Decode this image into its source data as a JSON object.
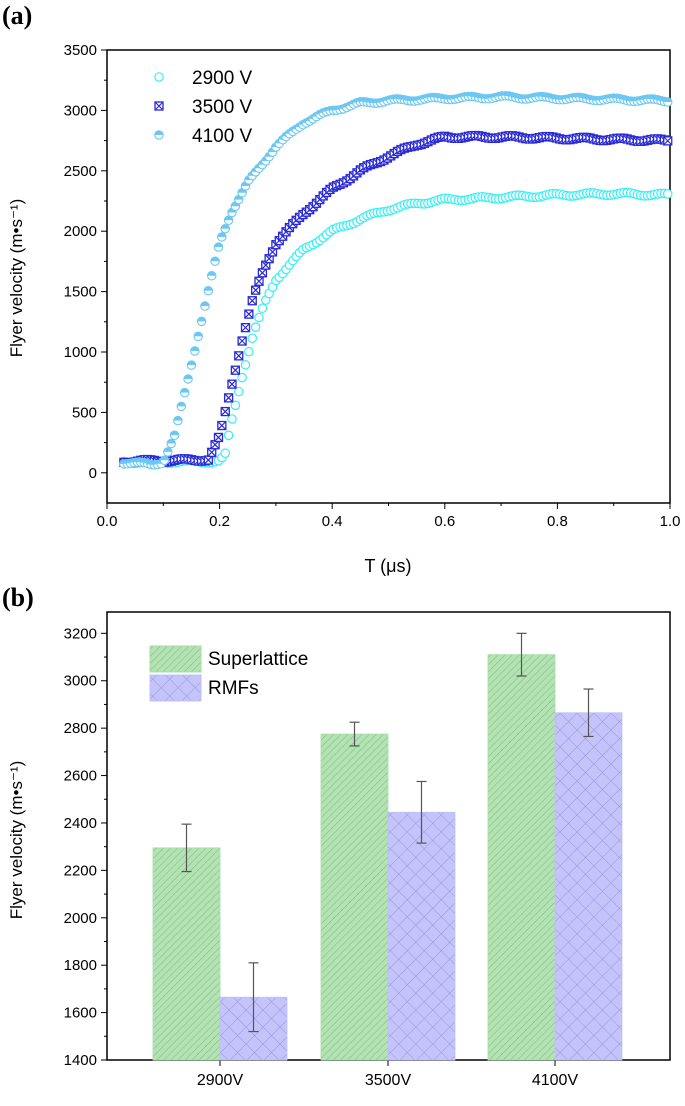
{
  "chart_data": [
    {
      "panel_label": "(a)",
      "type": "scatter",
      "xlabel": "T (μs)",
      "ylabel": "Flyer velocity (m•s⁻¹)",
      "xlim": [
        0,
        1.0
      ],
      "ylim": [
        -250,
        3500
      ],
      "xticks": [
        "0.0",
        "0.2",
        "0.4",
        "0.6",
        "0.8",
        "1.0"
      ],
      "yticks": [
        "0",
        "500",
        "1000",
        "1500",
        "2000",
        "2500",
        "3000",
        "3500"
      ],
      "legend_position": "top-left",
      "grid": false,
      "series": [
        {
          "name": "2900 V",
          "color": "#33f0f5",
          "marker": "open-circle",
          "x": [
            0.03,
            0.1,
            0.2,
            0.21,
            0.22,
            0.24,
            0.26,
            0.28,
            0.3,
            0.35,
            0.4,
            0.45,
            0.5,
            0.55,
            0.6,
            0.7,
            0.8,
            0.9,
            1.0
          ],
          "y": [
            90,
            90,
            95,
            150,
            400,
            800,
            1150,
            1400,
            1600,
            1850,
            2000,
            2100,
            2180,
            2230,
            2260,
            2280,
            2300,
            2310,
            2300
          ]
        },
        {
          "name": "3500 V",
          "color": "#2a2ad8",
          "marker": "crossed-square",
          "x": [
            0.03,
            0.1,
            0.18,
            0.2,
            0.22,
            0.24,
            0.26,
            0.28,
            0.3,
            0.35,
            0.4,
            0.45,
            0.5,
            0.55,
            0.6,
            0.7,
            0.8,
            0.9,
            1.0
          ],
          "y": [
            95,
            100,
            110,
            300,
            700,
            1100,
            1450,
            1700,
            1900,
            2150,
            2350,
            2500,
            2620,
            2720,
            2780,
            2780,
            2770,
            2760,
            2750
          ]
        },
        {
          "name": "4100 V",
          "color": "#6cc8f2",
          "marker": "half-filled-circle",
          "x": [
            0.03,
            0.08,
            0.1,
            0.12,
            0.14,
            0.16,
            0.18,
            0.2,
            0.22,
            0.25,
            0.3,
            0.35,
            0.4,
            0.45,
            0.5,
            0.6,
            0.7,
            0.8,
            0.9,
            1.0
          ],
          "y": [
            85,
            70,
            90,
            300,
            700,
            1100,
            1500,
            1900,
            2150,
            2400,
            2700,
            2900,
            3000,
            3060,
            3080,
            3100,
            3110,
            3100,
            3090,
            3080
          ]
        }
      ]
    },
    {
      "panel_label": "(b)",
      "type": "bar",
      "ylabel": "Flyer velocity (m•s⁻¹)",
      "categories": [
        "2900V",
        "3500V",
        "4100V"
      ],
      "ylim": [
        1400,
        3290
      ],
      "yticks": [
        "1400",
        "1600",
        "1800",
        "2000",
        "2200",
        "2400",
        "2600",
        "2800",
        "3000",
        "3200"
      ],
      "legend_position": "top-left",
      "grid": false,
      "series": [
        {
          "name": "Superlattice",
          "color": "#a8dca8",
          "pattern": "diagonal-hatch",
          "values": [
            2295,
            2775,
            3110
          ],
          "errors": [
            100,
            50,
            90
          ]
        },
        {
          "name": "RMFs",
          "color": "#c0c0fa",
          "pattern": "cross-hatch",
          "values": [
            1665,
            2445,
            2865
          ],
          "errors": [
            145,
            130,
            100
          ]
        }
      ]
    }
  ]
}
